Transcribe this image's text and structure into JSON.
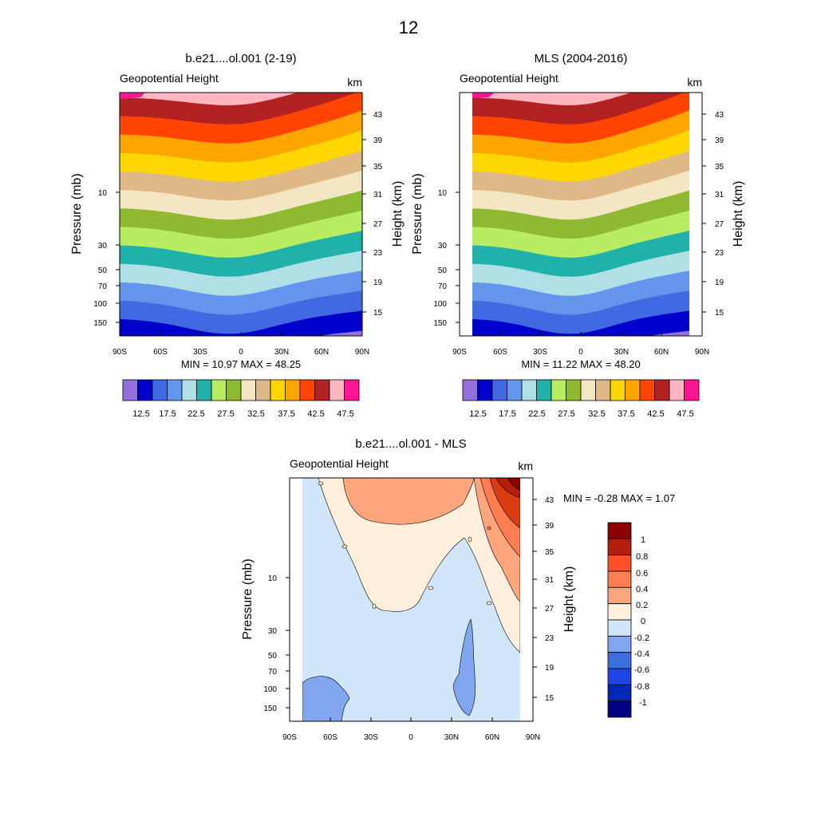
{
  "page": {
    "number": "12"
  },
  "chart_data": [
    {
      "type": "contour",
      "title": "b.e21....ol.001 (2-19)",
      "subtitle": "Geopotential Height",
      "units": "km",
      "xlabel": "",
      "ylabel": "Pressure (mb)",
      "y2label": "Height (km)",
      "x_ticks": [
        "90S",
        "60S",
        "30S",
        "0",
        "30N",
        "60N",
        "90N"
      ],
      "y_ticks": [
        "10",
        "30",
        "50",
        "70",
        "100",
        "150"
      ],
      "y2_ticks": [
        "43",
        "39",
        "35",
        "31",
        "27",
        "23",
        "19",
        "15"
      ],
      "min": "10.97",
      "max": "48.25",
      "min_max_label": "MIN =  10.97  MAX =  48.25",
      "colorbar_labels": [
        "12.5",
        "17.5",
        "22.5",
        "27.5",
        "32.5",
        "37.5",
        "42.5",
        "47.5"
      ]
    },
    {
      "type": "contour",
      "title": "MLS (2004-2016)",
      "subtitle": "Geopotential Height",
      "units": "km",
      "xlabel": "",
      "ylabel": "Pressure (mb)",
      "y2label": "Height (km)",
      "x_ticks": [
        "90S",
        "60S",
        "30S",
        "0",
        "30N",
        "60N",
        "90N"
      ],
      "y_ticks": [
        "10",
        "30",
        "50",
        "70",
        "100",
        "150"
      ],
      "y2_ticks": [
        "43",
        "39",
        "35",
        "31",
        "27",
        "23",
        "19",
        "15"
      ],
      "min": "11.22",
      "max": "48.20",
      "min_max_label": "MIN =  11.22  MAX =  48.20",
      "colorbar_labels": [
        "12.5",
        "17.5",
        "22.5",
        "27.5",
        "32.5",
        "37.5",
        "42.5",
        "47.5"
      ]
    },
    {
      "type": "contour",
      "title": "b.e21....ol.001 - MLS",
      "subtitle": "Geopotential Height",
      "units": "km",
      "xlabel": "",
      "ylabel": "Pressure (mb)",
      "y2label": "Height (km)",
      "x_ticks": [
        "90S",
        "60S",
        "30S",
        "0",
        "30N",
        "60N",
        "90N"
      ],
      "y_ticks": [
        "10",
        "30",
        "50",
        "70",
        "100",
        "150"
      ],
      "y2_ticks": [
        "43",
        "39",
        "35",
        "31",
        "27",
        "23",
        "19",
        "15"
      ],
      "min": "-0.28",
      "max": "1.07",
      "min_max_label": "MIN =  -0.28  MAX =   1.07",
      "colorbar_labels": [
        "1",
        "0.8",
        "0.6",
        "0.4",
        "0.2",
        "0",
        "-0.2",
        "-0.4",
        "-0.6",
        "-0.8",
        "-1"
      ]
    }
  ],
  "colors": {
    "levels_abs": [
      "#9370db",
      "#0000cd",
      "#4169e1",
      "#6495ed",
      "#b0e0e6",
      "#20b2aa",
      "#b8ed62",
      "#90b932",
      "#f5e6c3",
      "#deb887",
      "#ffd700",
      "#ffa500",
      "#ff4500",
      "#b22222",
      "#ffb6c1",
      "#ff1493"
    ],
    "levels_diff": [
      "#8b0000",
      "#b41e0a",
      "#dc3c14",
      "#ff5028",
      "#ff7d50",
      "#ffa57d",
      "#ffefdc",
      "#d2e6fa",
      "#82a5f0",
      "#3c6edc",
      "#1e46e6",
      "#0028b4",
      "#001e96",
      "#000080"
    ],
    "diff_pos_1": "#ffefdc",
    "diff_pos_2": "#ffa57d",
    "diff_pos_3": "#ff7d50",
    "diff_pos_4": "#dc3c14",
    "diff_pos_5": "#b41e0a",
    "diff_pos_6": "#8b0000",
    "diff_neg_1": "#d2e6fa",
    "diff_neg_2": "#82a5f0"
  }
}
